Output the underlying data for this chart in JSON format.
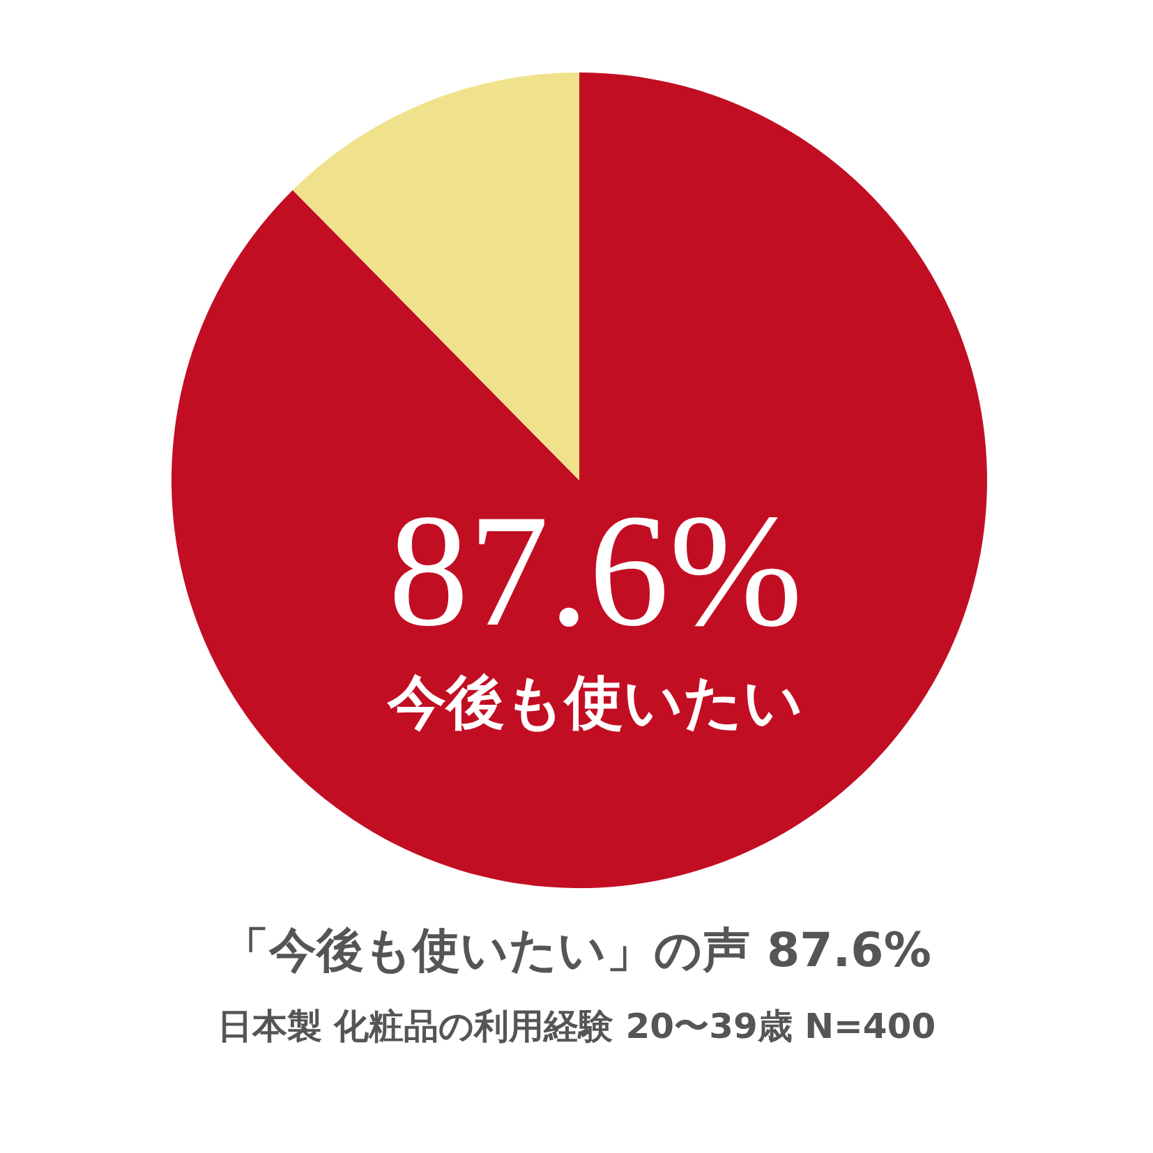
{
  "chart_data": {
    "type": "pie",
    "categories": [
      "今後も使いたい",
      null
    ],
    "values": [
      87.6,
      12.4
    ],
    "colors": [
      "#c20e23",
      "#f0e28c"
    ],
    "value_labels": [
      "87.6%",
      null
    ],
    "annotations": [
      "「今後も使いたい」の声 87.6%",
      "日本製 化粧品の利用経験 20〜39歳 N=400"
    ]
  }
}
